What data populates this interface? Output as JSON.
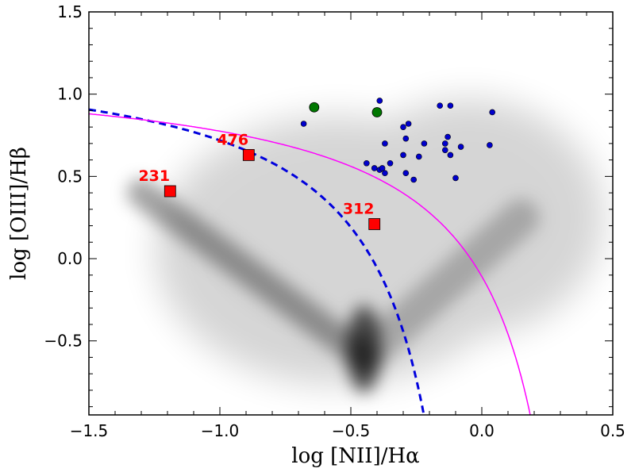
{
  "chart_data": {
    "type": "scatter",
    "xlabel": "log [NII]/Hα",
    "ylabel": "log [OIII]/Hβ",
    "xlim": [
      -1.5,
      0.5
    ],
    "ylim": [
      -0.95,
      1.5
    ],
    "xticks": [
      -1.5,
      -1.0,
      -0.5,
      0.0,
      0.5
    ],
    "yticks": [
      -0.5,
      0.0,
      0.5,
      1.0,
      1.5
    ],
    "xtick_labels": [
      "−1.5",
      "−1.0",
      "−0.5",
      "0.0",
      "0.5"
    ],
    "ytick_labels": [
      "−0.5",
      "0.0",
      "0.5",
      "1.0",
      "1.5"
    ],
    "grid": false,
    "background_density": {
      "description": "grey density of background galaxy sample",
      "color": "#000000",
      "ridges": [
        {
          "from": [
            -1.3,
            0.4
          ],
          "to": [
            -0.45,
            -0.6
          ]
        },
        {
          "from": [
            -0.45,
            -0.6
          ],
          "to": [
            0.15,
            0.25
          ]
        }
      ]
    },
    "curves": [
      {
        "kind": "kauffmann",
        "color": "#0000dd",
        "style": "dashed",
        "asymptote": 0.05,
        "a": 0.61,
        "b": 1.3
      },
      {
        "kind": "kewley",
        "color": "#ff00ff",
        "style": "solid",
        "asymptote": 0.47,
        "a": 0.61,
        "b": 1.19
      }
    ],
    "series": [
      {
        "marker": "circle-small",
        "color": "#0000cc",
        "points": [
          [
            -0.68,
            0.82
          ],
          [
            -0.39,
            0.96
          ],
          [
            -0.3,
            0.8
          ],
          [
            -0.28,
            0.82
          ],
          [
            -0.29,
            0.73
          ],
          [
            -0.37,
            0.7
          ],
          [
            -0.22,
            0.7
          ],
          [
            -0.14,
            0.7
          ],
          [
            -0.13,
            0.74
          ],
          [
            -0.08,
            0.68
          ],
          [
            -0.16,
            0.93
          ],
          [
            -0.12,
            0.93
          ],
          [
            0.04,
            0.89
          ],
          [
            0.03,
            0.69
          ],
          [
            -0.3,
            0.63
          ],
          [
            -0.24,
            0.62
          ],
          [
            -0.14,
            0.66
          ],
          [
            -0.12,
            0.63
          ],
          [
            -0.44,
            0.58
          ],
          [
            -0.35,
            0.58
          ],
          [
            -0.41,
            0.55
          ],
          [
            -0.39,
            0.54
          ],
          [
            -0.37,
            0.52
          ],
          [
            -0.38,
            0.55
          ],
          [
            -0.29,
            0.52
          ],
          [
            -0.26,
            0.48
          ],
          [
            -0.1,
            0.49
          ]
        ]
      },
      {
        "marker": "circle-large",
        "color": "#007700",
        "points": [
          [
            -0.64,
            0.92
          ],
          [
            -0.4,
            0.89
          ]
        ]
      },
      {
        "marker": "square",
        "color": "#ff0000",
        "points": [
          {
            "x": -1.19,
            "y": 0.41,
            "label": "231"
          },
          {
            "x": -0.89,
            "y": 0.63,
            "label": "476"
          },
          {
            "x": -0.41,
            "y": 0.21,
            "label": "312"
          }
        ]
      }
    ]
  }
}
